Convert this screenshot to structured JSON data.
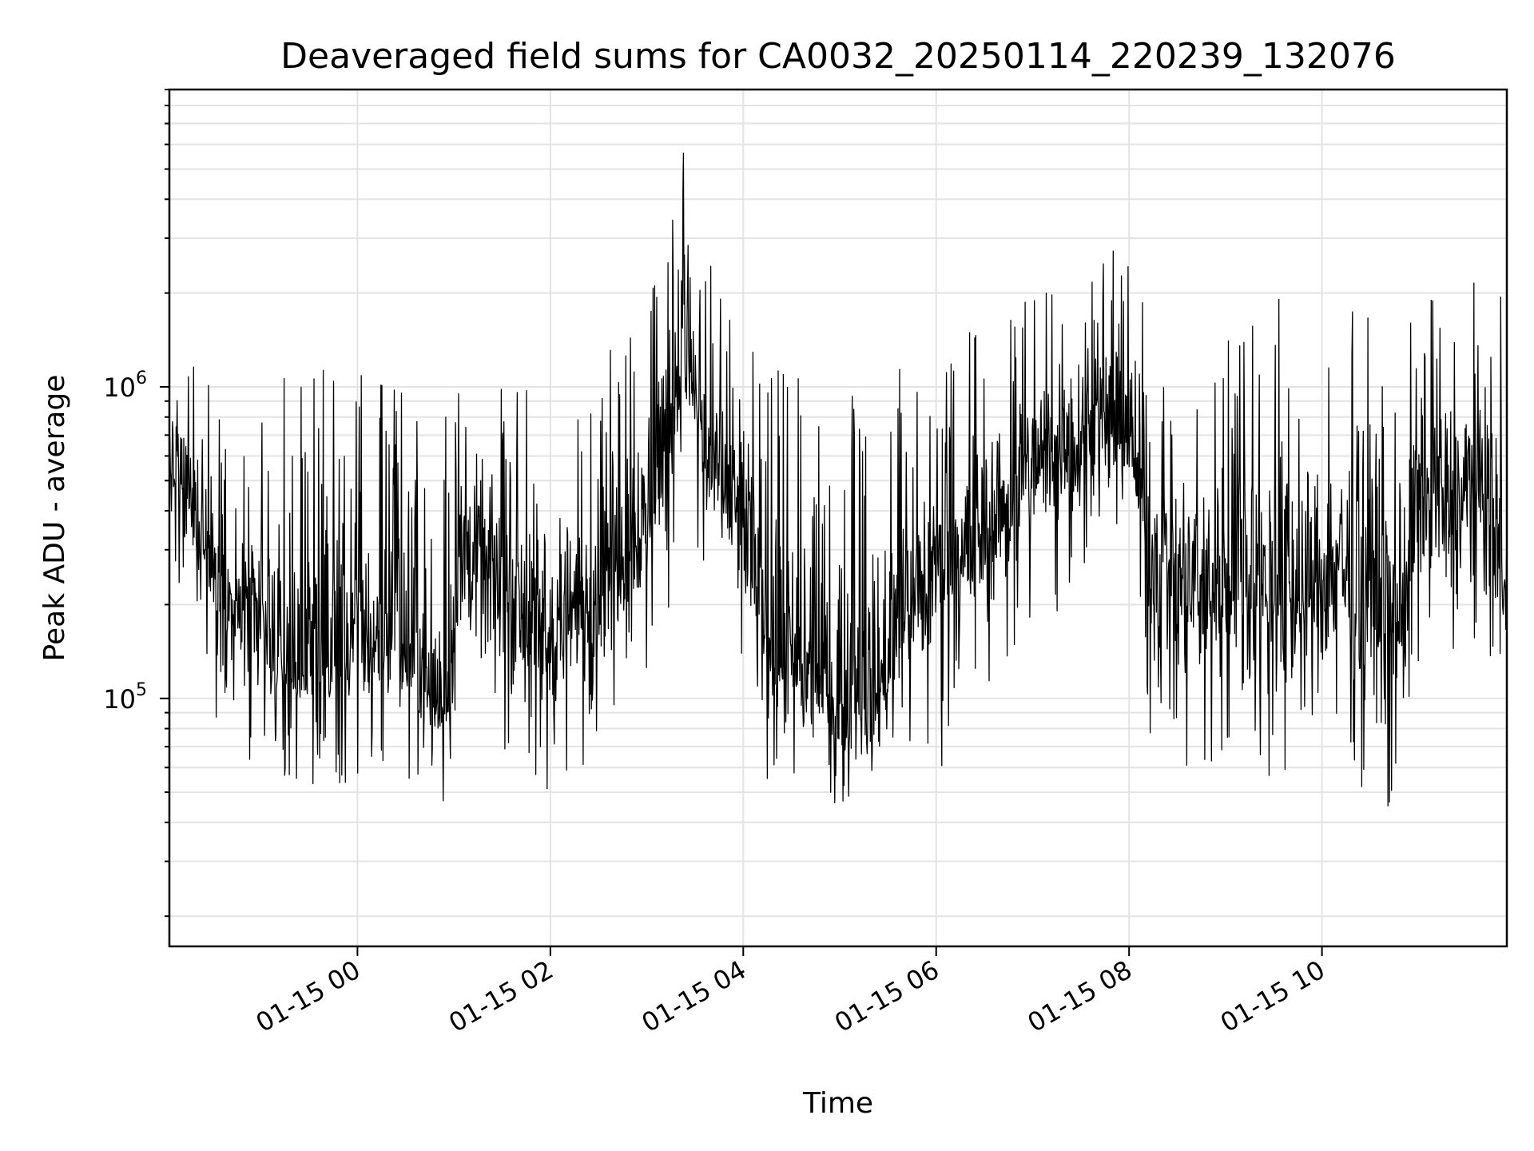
{
  "chart_data": {
    "type": "line",
    "title": "Deaveraged field sums for CA0032_20250114_220239_132076",
    "xlabel": "Time",
    "ylabel": "Peak ADU - average",
    "y_scale": "log",
    "ylim": [
      16000,
      9000000
    ],
    "xlim": [
      "01-14 22:03",
      "01-15 11:55"
    ],
    "grid": true,
    "line_color": "#000000",
    "x_ticks": [
      {
        "value": "01-15 00:00",
        "label": "01-15 00"
      },
      {
        "value": "01-15 02:00",
        "label": "01-15 02"
      },
      {
        "value": "01-15 04:00",
        "label": "01-15 04"
      },
      {
        "value": "01-15 06:00",
        "label": "01-15 06"
      },
      {
        "value": "01-15 08:00",
        "label": "01-15 08"
      },
      {
        "value": "01-15 10:00",
        "label": "01-15 10"
      }
    ],
    "y_ticks": [
      {
        "value": 100000,
        "base": "10",
        "exp": "5"
      },
      {
        "value": 1000000,
        "base": "10",
        "exp": "6"
      }
    ],
    "series": [
      {
        "x": [
          "01-14 22:03",
          "01-14 22:20",
          "01-14 22:40",
          "01-14 23:00",
          "01-14 23:20",
          "01-14 23:40",
          "01-15 00:00",
          "01-15 00:20",
          "01-15 00:40",
          "01-15 00:55",
          "01-15 01:05",
          "01-15 01:20",
          "01-15 01:40",
          "01-15 02:00",
          "01-15 02:20",
          "01-15 02:40",
          "01-15 03:00",
          "01-15 03:15",
          "01-15 03:25",
          "01-15 03:35",
          "01-15 03:50",
          "01-15 04:05",
          "01-15 04:20",
          "01-15 04:40",
          "01-15 05:00",
          "01-15 05:20",
          "01-15 05:40",
          "01-15 06:00",
          "01-15 06:20",
          "01-15 06:40",
          "01-15 07:00",
          "01-15 07:20",
          "01-15 07:40",
          "01-15 08:00",
          "01-15 08:15",
          "01-15 08:30",
          "01-15 08:50",
          "01-15 09:10",
          "01-15 09:30",
          "01-15 09:50",
          "01-15 10:10",
          "01-15 10:30",
          "01-15 10:50",
          "01-15 11:00",
          "01-15 11:20",
          "01-15 11:40",
          "01-15 11:55"
        ],
        "y": [
          600000,
          350000,
          200000,
          150000,
          120000,
          130000,
          150000,
          160000,
          120000,
          90000,
          300000,
          250000,
          200000,
          150000,
          200000,
          280000,
          380000,
          900000,
          1500000,
          600000,
          450000,
          300000,
          130000,
          110000,
          100000,
          90000,
          180000,
          250000,
          300000,
          400000,
          550000,
          650000,
          750000,
          700000,
          300000,
          220000,
          220000,
          250000,
          220000,
          200000,
          280000,
          200000,
          180000,
          450000,
          400000,
          500000,
          200000
        ],
        "y_low": [
          300000,
          150000,
          60000,
          60000,
          55000,
          50000,
          55000,
          60000,
          50000,
          45000,
          80000,
          70000,
          60000,
          50000,
          60000,
          80000,
          120000,
          200000,
          400000,
          200000,
          150000,
          70000,
          40000,
          45000,
          45000,
          40000,
          60000,
          50000,
          90000,
          120000,
          160000,
          200000,
          250000,
          300000,
          60000,
          60000,
          60000,
          55000,
          50000,
          50000,
          60000,
          45000,
          45000,
          120000,
          110000,
          150000,
          100000
        ],
        "y_high": [
          1400000,
          1200000,
          900000,
          800000,
          1600000,
          1300000,
          1100000,
          1000000,
          1000000,
          800000,
          1200000,
          1100000,
          1000000,
          1100000,
          1300000,
          1400000,
          2000000,
          4000000,
          7000000,
          3000000,
          1800000,
          1700000,
          1300000,
          1000000,
          1000000,
          900000,
          1200000,
          1300000,
          1500000,
          1700000,
          2000000,
          2800000,
          2900000,
          2700000,
          1500000,
          1200000,
          1500000,
          1700000,
          2800000,
          2000000,
          1800000,
          1700000,
          1600000,
          1700000,
          2700000,
          3100000,
          1900000
        ]
      }
    ]
  }
}
